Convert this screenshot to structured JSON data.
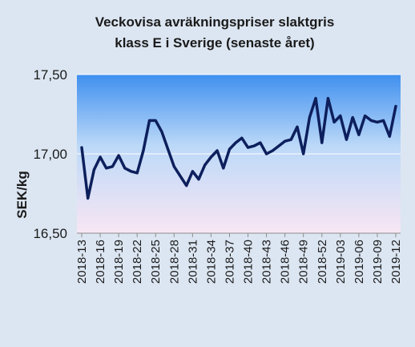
{
  "chart_data": {
    "type": "line",
    "title_line1": "Veckovisa avräkningspriser slaktgris",
    "title_line2": "klass E i Sverige (senaste året)",
    "xlabel": "",
    "ylabel": "SEK/kg",
    "ylim": [
      16.5,
      17.5
    ],
    "yticks": [
      "17,50",
      "17,00",
      "16,50"
    ],
    "ytick_values": [
      17.5,
      17.0,
      16.5
    ],
    "grid": "horizontal",
    "legend": "none",
    "colors": {
      "line": "#0d1f5c",
      "plot_top": "#3f8fef",
      "plot_mid": "#bcd9f8",
      "plot_bottom": "#f8e6f3",
      "background": "#dce6f2"
    },
    "x_labels": [
      "2018-13",
      "2018-16",
      "2018-19",
      "2018-22",
      "2018-25",
      "2018-28",
      "2018-31",
      "2018-34",
      "2018-37",
      "2018-40",
      "2018-43",
      "2018-46",
      "2018-49",
      "2018-52",
      "2019-03",
      "2019-06",
      "2019-09",
      "2019-12"
    ],
    "label_every": 3,
    "x": [
      "2018-13",
      "2018-14",
      "2018-15",
      "2018-16",
      "2018-17",
      "2018-18",
      "2018-19",
      "2018-20",
      "2018-21",
      "2018-22",
      "2018-23",
      "2018-24",
      "2018-25",
      "2018-26",
      "2018-27",
      "2018-28",
      "2018-29",
      "2018-30",
      "2018-31",
      "2018-32",
      "2018-33",
      "2018-34",
      "2018-35",
      "2018-36",
      "2018-37",
      "2018-38",
      "2018-39",
      "2018-40",
      "2018-41",
      "2018-42",
      "2018-43",
      "2018-44",
      "2018-45",
      "2018-46",
      "2018-47",
      "2018-48",
      "2018-49",
      "2018-50",
      "2018-51",
      "2018-52",
      "2019-01",
      "2019-02",
      "2019-03",
      "2019-04",
      "2019-05",
      "2019-06",
      "2019-07",
      "2019-08",
      "2019-09",
      "2019-10",
      "2019-11",
      "2019-12"
    ],
    "values": [
      17.04,
      16.72,
      16.9,
      16.98,
      16.91,
      16.92,
      16.99,
      16.91,
      16.89,
      16.88,
      17.02,
      17.21,
      17.21,
      17.14,
      17.03,
      16.92,
      16.86,
      16.8,
      16.89,
      16.84,
      16.93,
      16.98,
      17.02,
      16.91,
      17.03,
      17.07,
      17.1,
      17.04,
      17.05,
      17.07,
      17.0,
      17.02,
      17.05,
      17.08,
      17.09,
      17.17,
      17.0,
      17.23,
      17.35,
      17.07,
      17.35,
      17.2,
      17.24,
      17.09,
      17.23,
      17.12,
      17.24,
      17.21,
      17.2,
      17.21,
      17.11,
      17.3
    ]
  }
}
